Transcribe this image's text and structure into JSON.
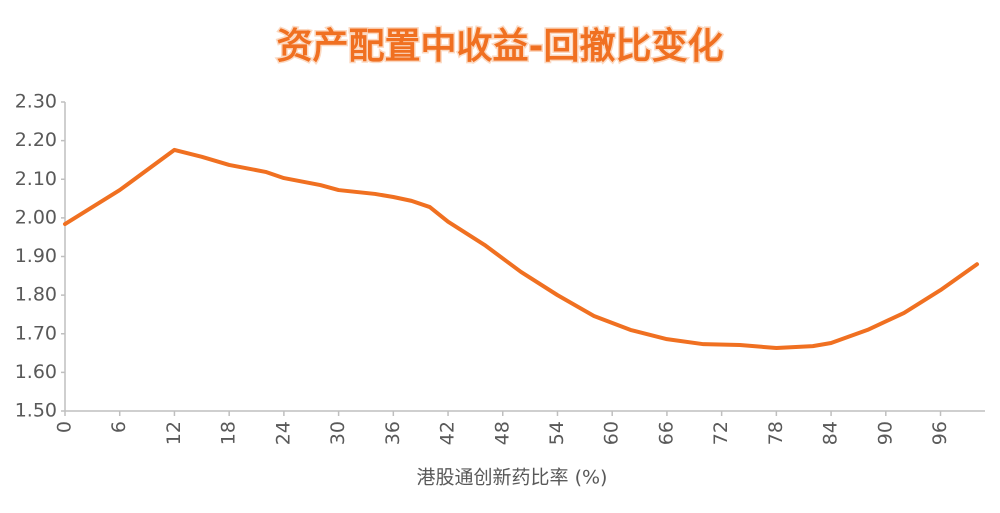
{
  "chart_data": {
    "type": "line",
    "title": "资产配置中收益-回撤比变化",
    "xlabel": "港股通创新药比率 (%)",
    "x": [
      0,
      6,
      12,
      15,
      18,
      22,
      24,
      28,
      30,
      34,
      36,
      38,
      40,
      42,
      46,
      50,
      54,
      58,
      62,
      66,
      70,
      74,
      78,
      82,
      84,
      88,
      92,
      96,
      100
    ],
    "series": [
      {
        "name": "收益-回撤比",
        "color": "#f07021",
        "values": [
          1.984,
          2.072,
          2.176,
          2.158,
          2.137,
          2.119,
          2.103,
          2.085,
          2.072,
          2.062,
          2.054,
          2.044,
          2.028,
          1.99,
          1.93,
          1.86,
          1.8,
          1.746,
          1.71,
          1.686,
          1.673,
          1.671,
          1.663,
          1.668,
          1.676,
          1.71,
          1.754,
          1.813,
          1.88
        ]
      }
    ],
    "xlim": [
      0,
      100
    ],
    "xticks": [
      0,
      6,
      12,
      18,
      24,
      30,
      36,
      42,
      48,
      54,
      60,
      66,
      72,
      78,
      84,
      90,
      96
    ],
    "ylim": [
      1.5,
      2.3
    ],
    "yticks": [
      {
        "value": 1.5,
        "label": "1.50"
      },
      {
        "value": 1.6,
        "label": "1.60"
      },
      {
        "value": 1.7,
        "label": "1.70"
      },
      {
        "value": 1.8,
        "label": "1.80"
      },
      {
        "value": 1.9,
        "label": "1.90"
      },
      {
        "value": 2.0,
        "label": "2.00"
      },
      {
        "value": 2.1,
        "label": "2.10"
      },
      {
        "value": 2.2,
        "label": "2.20"
      },
      {
        "value": 2.3,
        "label": "2.30"
      }
    ],
    "grid": false
  }
}
